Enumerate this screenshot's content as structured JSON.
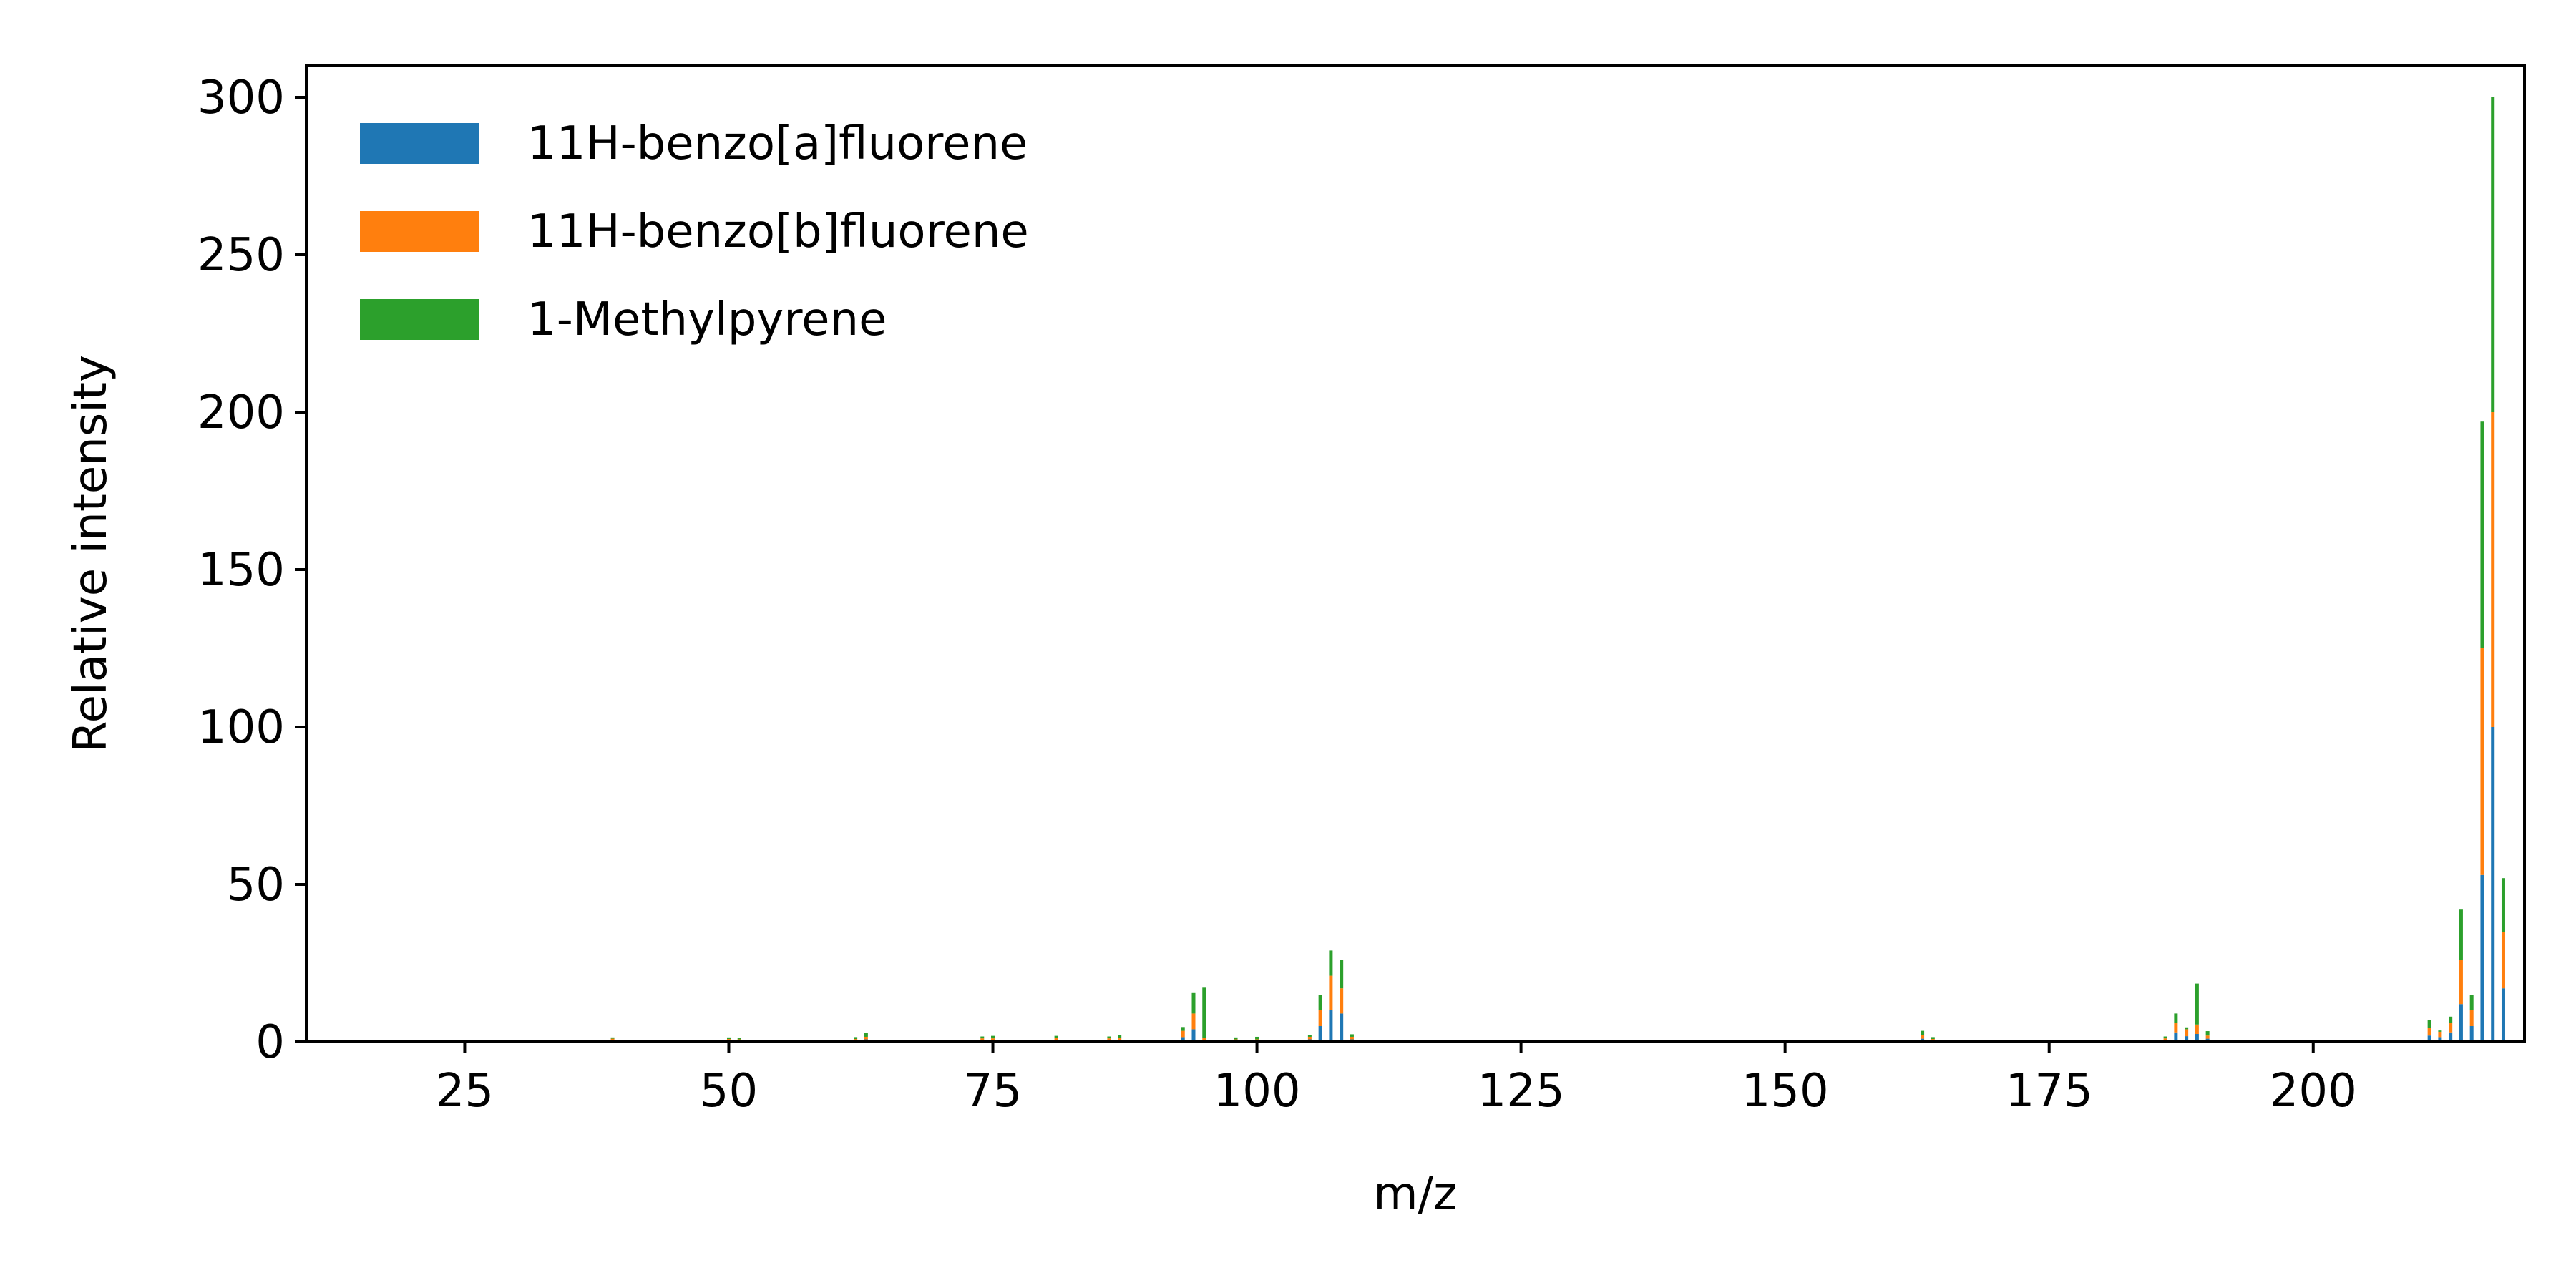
{
  "chart_data": {
    "type": "bar",
    "stacked": true,
    "xlabel": "m/z",
    "ylabel": "Relative intensity",
    "xlim": [
      10,
      220
    ],
    "ylim": [
      0,
      310
    ],
    "xticks": [
      25,
      50,
      75,
      100,
      125,
      150,
      175,
      200
    ],
    "yticks": [
      0,
      50,
      100,
      150,
      200,
      250,
      300
    ],
    "grid": false,
    "legend_position": "top-left",
    "series": [
      {
        "name": "11H-benzo[a]fluorene",
        "color": "#1f77b4",
        "x": [
          39,
          50,
          51,
          62,
          63,
          74,
          75,
          81,
          86,
          87,
          93,
          94,
          95,
          98,
          100,
          105,
          106,
          107,
          108,
          109,
          163,
          164,
          186,
          187,
          188,
          189,
          190,
          211,
          212,
          213,
          214,
          215,
          216,
          217,
          218
        ],
        "values": [
          0.5,
          0.4,
          0.4,
          0.4,
          0.8,
          0.5,
          0.5,
          0.5,
          0.5,
          0.6,
          1.5,
          4.0,
          0.6,
          0.4,
          0.4,
          0.8,
          5.0,
          10.0,
          9.0,
          0.8,
          1.0,
          0.4,
          0.5,
          3.0,
          1.8,
          2.5,
          1.0,
          2.0,
          1.5,
          3.0,
          12.0,
          5.0,
          53.0,
          100.0,
          17.0
        ]
      },
      {
        "name": "11H-benzo[b]fluorene",
        "color": "#ff7f0e",
        "x": [
          39,
          50,
          51,
          62,
          63,
          74,
          75,
          81,
          86,
          87,
          93,
          94,
          95,
          98,
          100,
          105,
          106,
          107,
          108,
          109,
          163,
          164,
          186,
          187,
          188,
          189,
          190,
          211,
          212,
          213,
          214,
          215,
          216,
          217,
          218
        ],
        "values": [
          0.5,
          0.5,
          0.4,
          0.5,
          0.8,
          0.6,
          0.6,
          0.8,
          0.6,
          0.7,
          2.0,
          5.0,
          0.6,
          0.4,
          0.4,
          0.8,
          5.0,
          11.0,
          8.0,
          0.8,
          1.2,
          0.5,
          0.6,
          3.0,
          2.2,
          3.0,
          1.0,
          2.5,
          1.7,
          3.0,
          14.0,
          5.0,
          72.0,
          100.0,
          18.0
        ]
      },
      {
        "name": "1-Methylpyrene",
        "color": "#2ca02c",
        "x": [
          39,
          50,
          51,
          62,
          63,
          74,
          75,
          81,
          86,
          87,
          93,
          94,
          95,
          98,
          100,
          105,
          106,
          107,
          108,
          109,
          163,
          164,
          186,
          187,
          188,
          189,
          190,
          211,
          212,
          213,
          214,
          215,
          216,
          217,
          218
        ],
        "values": [
          0.4,
          0.5,
          0.5,
          0.6,
          1.2,
          0.6,
          0.8,
          0.6,
          0.6,
          0.8,
          1.2,
          6.5,
          16.0,
          0.6,
          0.8,
          0.6,
          5.0,
          8.0,
          9.0,
          0.8,
          1.3,
          0.6,
          0.6,
          3.0,
          0.6,
          13.0,
          1.4,
          2.5,
          0.4,
          2.0,
          16.0,
          5.0,
          72.0,
          100.0,
          17.0
        ]
      }
    ]
  }
}
